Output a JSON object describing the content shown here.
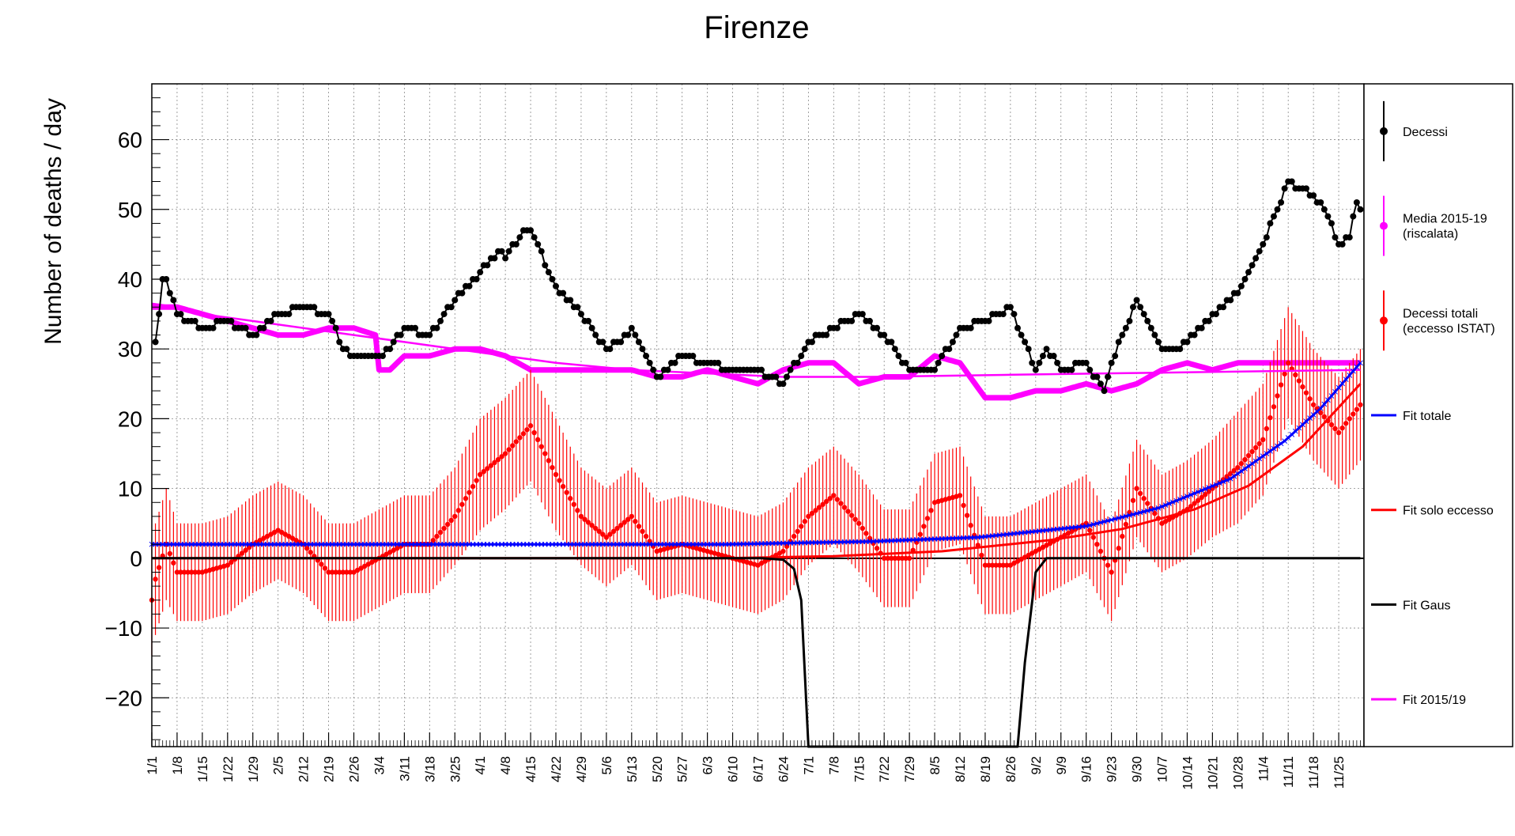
{
  "colors": {
    "decessi": "#000000",
    "media": "#ff00ff",
    "eccesso": "#ff0000",
    "fit_totale": "#0000ff",
    "fit_eccesso": "#ff0000",
    "fit_gaus": "#000000",
    "fit_2015": "#ff00ff"
  },
  "chart_data": {
    "type": "line",
    "title": "Firenze",
    "xlabel": "",
    "ylabel": "Number of deaths / day",
    "xlim": [
      1,
      337
    ],
    "ylim": [
      -27,
      68
    ],
    "grid": true,
    "legend_placement": "right",
    "y_ticks": [
      -20,
      -10,
      0,
      10,
      20,
      30,
      40,
      50,
      60
    ],
    "x_tick_days": [
      1,
      8,
      15,
      22,
      29,
      36,
      43,
      50,
      57,
      64,
      71,
      78,
      85,
      92,
      99,
      106,
      113,
      120,
      127,
      134,
      141,
      148,
      155,
      162,
      169,
      176,
      183,
      190,
      197,
      204,
      211,
      218,
      225,
      232,
      239,
      246,
      253,
      260,
      267,
      274,
      281,
      288,
      295,
      302,
      309,
      316,
      323,
      330
    ],
    "x_tick_labels": [
      "1/1",
      "1/8",
      "1/15",
      "1/22",
      "1/29",
      "2/5",
      "2/12",
      "2/19",
      "2/26",
      "3/4",
      "3/11",
      "3/18",
      "3/25",
      "4/1",
      "4/8",
      "4/15",
      "4/22",
      "4/29",
      "5/6",
      "5/13",
      "5/20",
      "5/27",
      "6/3",
      "6/10",
      "6/17",
      "6/24",
      "7/1",
      "7/8",
      "7/15",
      "7/22",
      "7/29",
      "8/5",
      "8/12",
      "8/19",
      "8/26",
      "9/2",
      "9/9",
      "9/16",
      "9/23",
      "9/30",
      "10/7",
      "10/14",
      "10/21",
      "10/28",
      "11/4",
      "11/11",
      "11/18",
      "11/25"
    ],
    "legend": [
      {
        "key": "decessi",
        "label": "Decessi"
      },
      {
        "key": "media",
        "label": "Media 2015-19",
        "label2": "(riscalata)"
      },
      {
        "key": "eccesso",
        "label": "Decessi totali",
        "label2": "(eccesso ISTAT)"
      },
      {
        "key": "fit_totale",
        "label": "Fit totale"
      },
      {
        "key": "fit_eccesso",
        "label": "Fit solo eccesso"
      },
      {
        "key": "fit_gaus",
        "label": "Fit Gaus"
      },
      {
        "key": "fit_2015",
        "label": "Fit 2015/19"
      }
    ],
    "series": [
      {
        "key": "decessi",
        "name": "Decessi",
        "x": [
          2,
          3,
          4,
          5,
          8,
          15,
          22,
          29,
          36,
          43,
          50,
          54,
          57,
          64,
          67,
          71,
          78,
          85,
          92,
          97,
          99,
          104,
          106,
          113,
          120,
          127,
          131,
          134,
          141,
          148,
          155,
          162,
          169,
          176,
          183,
          190,
          197,
          204,
          211,
          218,
          225,
          232,
          239,
          246,
          249,
          253,
          260,
          265,
          267,
          274,
          281,
          286,
          288,
          295,
          302,
          309,
          316,
          323,
          326,
          330,
          333,
          335,
          336
        ],
        "y": [
          31,
          35,
          40,
          40,
          35,
          33,
          34,
          32,
          35,
          36,
          35,
          30,
          29,
          29,
          30,
          33,
          32,
          37,
          41,
          44,
          43,
          47,
          47,
          39,
          35,
          30,
          31,
          33,
          26,
          29,
          28,
          27,
          27,
          25,
          31,
          33,
          35,
          32,
          27,
          27,
          33,
          34,
          36,
          27,
          30,
          27,
          28,
          24,
          28,
          37,
          30,
          30,
          31,
          35,
          38,
          45,
          54,
          52,
          50,
          45,
          46,
          51,
          50
        ]
      },
      {
        "key": "media",
        "name": "Media 2015-19",
        "x": [
          1,
          8,
          15,
          22,
          29,
          36,
          43,
          50,
          57,
          63,
          64,
          67,
          71,
          78,
          85,
          92,
          99,
          106,
          113,
          120,
          127,
          134,
          141,
          148,
          155,
          162,
          169,
          176,
          183,
          190,
          197,
          204,
          211,
          218,
          225,
          232,
          239,
          246,
          253,
          260,
          267,
          274,
          281,
          288,
          295,
          302,
          309,
          316,
          323,
          330,
          336
        ],
        "y": [
          36,
          36,
          35,
          34,
          33,
          32,
          32,
          33,
          33,
          32,
          27,
          27,
          29,
          29,
          30,
          30,
          29,
          27,
          27,
          27,
          27,
          27,
          26,
          26,
          27,
          26,
          25,
          27,
          28,
          28,
          25,
          26,
          26,
          29,
          28,
          23,
          23,
          24,
          24,
          25,
          24,
          25,
          27,
          28,
          27,
          28,
          28,
          28,
          28,
          28,
          28
        ]
      },
      {
        "key": "eccesso",
        "name": "Decessi totali",
        "x": [
          1,
          2,
          5,
          8,
          15,
          22,
          29,
          36,
          43,
          50,
          57,
          64,
          71,
          78,
          85,
          92,
          99,
          106,
          113,
          120,
          127,
          134,
          141,
          148,
          155,
          162,
          169,
          176,
          183,
          190,
          197,
          204,
          211,
          218,
          225,
          232,
          239,
          246,
          253,
          260,
          267,
          274,
          281,
          288,
          295,
          302,
          309,
          316,
          323,
          330,
          336
        ],
        "y": [
          -6,
          -3,
          2,
          -2,
          -2,
          -1,
          2,
          4,
          2,
          -2,
          -2,
          0,
          2,
          2,
          6,
          12,
          15,
          19,
          12,
          6,
          3,
          6,
          1,
          2,
          1,
          0,
          -1,
          1,
          6,
          9,
          5,
          0,
          0,
          8,
          9,
          -1,
          -1,
          1,
          3,
          5,
          -2,
          10,
          5,
          7,
          10,
          13,
          17,
          28,
          22,
          18,
          22
        ],
        "err": [
          8,
          8,
          8,
          7,
          7,
          7,
          7,
          7,
          7,
          7,
          7,
          7,
          7,
          7,
          7,
          8,
          8,
          8,
          8,
          7,
          7,
          7,
          7,
          7,
          7,
          7,
          7,
          7,
          7,
          7,
          7,
          7,
          7,
          7,
          7,
          7,
          7,
          7,
          7,
          7,
          7,
          7,
          7,
          7,
          7,
          8,
          8,
          8,
          8,
          8,
          8
        ]
      }
    ],
    "fits": [
      {
        "key": "fit_totale",
        "name": "Fit totale",
        "x": [
          1,
          40,
          80,
          120,
          160,
          200,
          230,
          260,
          280,
          300,
          315,
          325,
          336
        ],
        "y": [
          2,
          2,
          2,
          2,
          2,
          2.4,
          3,
          4.6,
          7.2,
          11.4,
          16.8,
          21.5,
          28
        ]
      },
      {
        "key": "fit_eccesso",
        "name": "Fit solo eccesso",
        "x": [
          1,
          80,
          160,
          190,
          220,
          250,
          270,
          290,
          305,
          320,
          336
        ],
        "y": [
          0,
          0,
          0,
          0.3,
          1,
          2.6,
          4.2,
          7,
          10.4,
          16,
          25
        ]
      },
      {
        "key": "fit_gaus",
        "name": "Fit Gaus",
        "x": [
          1,
          170,
          176,
          179,
          181,
          183,
          185,
          239,
          241,
          243,
          246,
          249,
          252,
          336
        ],
        "y": [
          0,
          0,
          -0.2,
          -1.5,
          -6,
          -27,
          -27,
          -27,
          -27,
          -15,
          -2,
          0,
          0,
          0
        ]
      },
      {
        "key": "fit_2015",
        "name": "Fit 2015/19",
        "x": [
          1,
          8,
          15,
          29,
          43,
          57,
          71,
          92,
          113,
          134,
          155,
          176,
          200,
          240,
          280,
          336
        ],
        "y": [
          36.5,
          36,
          35,
          34,
          33,
          32,
          31,
          29.5,
          28,
          27,
          26.5,
          26,
          26,
          26.3,
          26.6,
          27
        ]
      }
    ]
  }
}
